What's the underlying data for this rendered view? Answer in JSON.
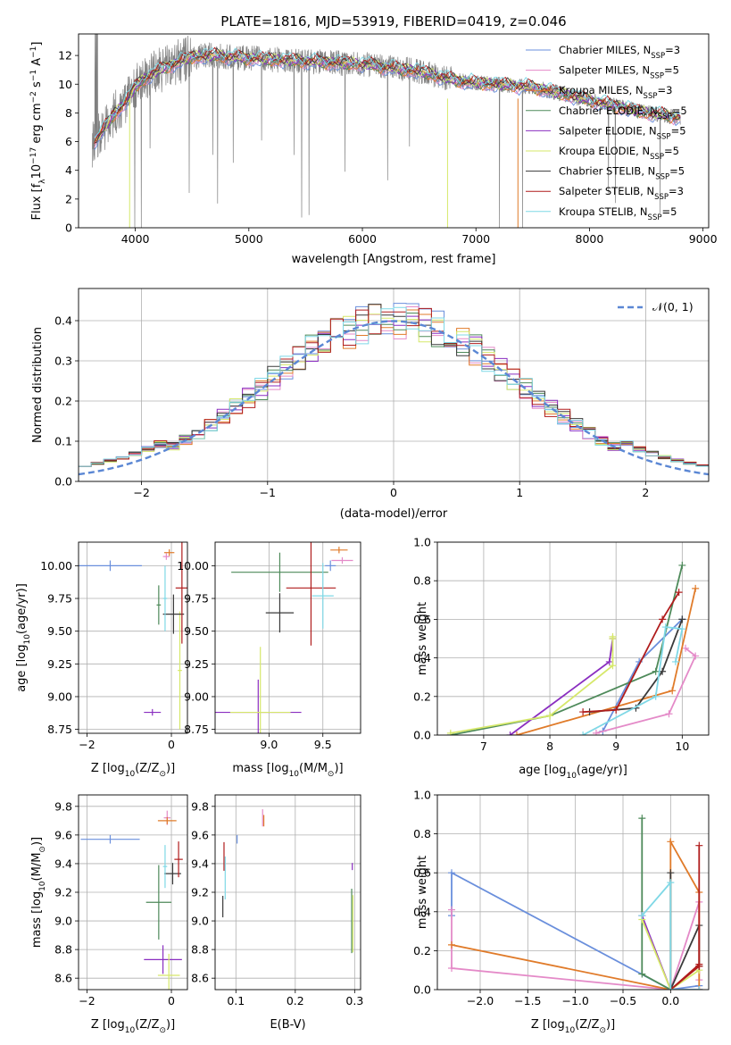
{
  "figure": {
    "title": "PLATE=1816, MJD=53919, FIBERID=0419, z=0.046"
  },
  "chart_data": [
    {
      "id": "spectrum",
      "type": "line",
      "title": "PLATE=1816, MJD=53919, FIBERID=0419, z=0.046",
      "xlabel": "wavelength [Angstrom, rest frame]",
      "ylabel": "Flux [f$_\\lambda$10$^{-17}$ erg cm$^{-2}$ s$^{-1}$ A$^{-1}$]",
      "ylabel_parts": [
        "Flux [f",
        "λ",
        "10",
        "−17",
        " erg cm",
        "−2",
        " s",
        "−1",
        " A",
        "−1",
        "]"
      ],
      "xlim": [
        3500,
        9050
      ],
      "ylim": [
        0,
        13.5
      ],
      "xticks": [
        4000,
        5000,
        6000,
        7000,
        8000,
        9000
      ],
      "yticks": [
        0,
        2,
        4,
        6,
        8,
        10,
        12
      ],
      "grid": false,
      "legend_position": "top-right",
      "data_wavelength": [
        3620,
        3700,
        3800,
        3900,
        4000,
        4100,
        4200,
        4300,
        4400,
        4500,
        4700,
        5000,
        5500,
        6000,
        6500,
        6800,
        7000,
        7500,
        8000,
        8500,
        8800
      ],
      "data_flux": [
        5.8,
        6.6,
        7.8,
        8.6,
        9.8,
        10.5,
        10.9,
        11.3,
        11.6,
        11.9,
        12.0,
        11.8,
        11.6,
        11.4,
        10.9,
        10.3,
        10.1,
        9.8,
        8.9,
        8.0,
        7.7
      ],
      "series": [
        {
          "name": "Chabrier MILES, N$_{SSP}$=3",
          "label": "Chabrier MILES, N",
          "sub": "SSP",
          "suffix": "=3",
          "color": "#6a8fdc"
        },
        {
          "name": "Salpeter MILES, N$_{SSP}$=5",
          "label": "Salpeter MILES, N",
          "sub": "SSP",
          "suffix": "=5",
          "color": "#e48ac8"
        },
        {
          "name": "Kroupa MILES, N$_{SSP}$=3",
          "label": "Kroupa MILES, N",
          "sub": "SSP",
          "suffix": "=3",
          "color": "#e07b2a"
        },
        {
          "name": "Chabrier ELODIE, N$_{SSP}$=5",
          "label": "Chabrier ELODIE, N",
          "sub": "SSP",
          "suffix": "=5",
          "color": "#4e8a5a"
        },
        {
          "name": "Salpeter ELODIE, N$_{SSP}$=5",
          "label": "Salpeter ELODIE, N",
          "sub": "SSP",
          "suffix": "=5",
          "color": "#8a2ec0"
        },
        {
          "name": "Kroupa ELODIE, N$_{SSP}$=5",
          "label": "Kroupa ELODIE, N",
          "sub": "SSP",
          "suffix": "=5",
          "color": "#d6e86a"
        },
        {
          "name": "Chabrier STELIB, N$_{SSP}$=5",
          "label": "Chabrier STELIB, N",
          "sub": "SSP",
          "suffix": "=5",
          "color": "#3a3a3a"
        },
        {
          "name": "Salpeter STELIB, N$_{SSP}$=3",
          "label": "Salpeter STELIB, N",
          "sub": "SSP",
          "suffix": "=3",
          "color": "#b01c1c"
        },
        {
          "name": "Kroupa STELIB, N$_{SSP}$=5",
          "label": "Kroupa STELIB, N",
          "sub": "SSP",
          "suffix": "=5",
          "color": "#7fd8e6"
        }
      ],
      "data_color": "#808080"
    },
    {
      "id": "residuals",
      "type": "histogram",
      "xlabel": "(data-model)/error",
      "ylabel": "Normed distribution",
      "xlim": [
        -2.5,
        2.5
      ],
      "ylim": [
        0,
        0.48
      ],
      "xticks": [
        -2,
        -1,
        0,
        1,
        2
      ],
      "yticks": [
        0.0,
        0.1,
        0.2,
        0.3,
        0.4
      ],
      "grid": true,
      "legend_position": "top-right",
      "legend": [
        "$\\mathcal{N}(0, 1)$"
      ],
      "legend_text": "𝒩(0, 1)",
      "normal_color": "#5b87d4"
    },
    {
      "id": "age-vs-Z",
      "type": "scatter",
      "xlabel": "Z [log$_{10}$(Z/Z$_\\odot$)]",
      "ylabel": "age  [log$_{10}$(age/yr)]",
      "xlim": [
        -2.2,
        0.38
      ],
      "ylim": [
        8.72,
        10.18
      ],
      "xticks": [
        -2,
        0
      ],
      "yticks": [
        8.75,
        9.0,
        9.25,
        9.5,
        9.75,
        10.0
      ],
      "grid": true,
      "points": [
        {
          "x": -1.45,
          "y": 10.0,
          "xerr": 0.75,
          "yerr": 0.08,
          "c": 0
        },
        {
          "x": -0.12,
          "y": 10.07,
          "xerr": 0.08,
          "yerr": 0.05,
          "c": 1
        },
        {
          "x": -0.05,
          "y": 10.1,
          "xerr": 0.12,
          "yerr": 0.05,
          "c": 2
        },
        {
          "x": -0.3,
          "y": 9.7,
          "xerr": 0.05,
          "yerr": 0.3,
          "c": 3
        },
        {
          "x": -0.45,
          "y": 8.88,
          "xerr": 0.2,
          "yerr": 0.05,
          "c": 4
        },
        {
          "x": 0.2,
          "y": 9.2,
          "xerr": 0.05,
          "yerr": 0.9,
          "c": 5
        },
        {
          "x": 0.05,
          "y": 9.63,
          "xerr": 0.25,
          "yerr": 0.3,
          "c": 6
        },
        {
          "x": 0.25,
          "y": 9.83,
          "xerr": 0.15,
          "yerr": 0.85,
          "c": 7
        },
        {
          "x": -0.15,
          "y": 9.75,
          "xerr": 0.05,
          "yerr": 0.5,
          "c": 8
        }
      ]
    },
    {
      "id": "age-vs-mass",
      "type": "scatter",
      "xlabel": "mass [log$_{10}$(M/M$_\\odot$)]",
      "ylabel": "",
      "xlim": [
        8.5,
        9.85
      ],
      "ylim": [
        8.72,
        10.18
      ],
      "xticks": [
        9.0,
        9.5
      ],
      "yticks": [
        8.75,
        9.0,
        9.25,
        9.5,
        9.75,
        10.0
      ],
      "grid": true,
      "points": [
        {
          "x": 9.57,
          "y": 10.0,
          "xerr": 0.05,
          "yerr": 0.08,
          "c": 0
        },
        {
          "x": 9.68,
          "y": 10.04,
          "xerr": 0.1,
          "yerr": 0.05,
          "c": 1
        },
        {
          "x": 9.65,
          "y": 10.12,
          "xerr": 0.08,
          "yerr": 0.05,
          "c": 2
        },
        {
          "x": 9.1,
          "y": 9.95,
          "xerr": 0.45,
          "yerr": 0.3,
          "c": 3
        },
        {
          "x": 8.9,
          "y": 8.88,
          "xerr": 0.4,
          "yerr": 0.5,
          "c": 4
        },
        {
          "x": 8.92,
          "y": 8.88,
          "xerr": 0.28,
          "yerr": 1.0,
          "c": 5
        },
        {
          "x": 9.1,
          "y": 9.64,
          "xerr": 0.13,
          "yerr": 0.3,
          "c": 6
        },
        {
          "x": 9.39,
          "y": 9.83,
          "xerr": 0.23,
          "yerr": 0.88,
          "c": 7
        },
        {
          "x": 9.5,
          "y": 9.77,
          "xerr": 0.1,
          "yerr": 0.5,
          "c": 8
        }
      ]
    },
    {
      "id": "weight-vs-age",
      "type": "line",
      "xlabel": "age  [log$_{10}$(age/yr)]",
      "ylabel": "mass weight",
      "xlim": [
        6.3,
        10.4
      ],
      "ylim": [
        0,
        1.0
      ],
      "xticks": [
        7,
        8,
        9,
        10
      ],
      "yticks": [
        0.0,
        0.2,
        0.4,
        0.6,
        0.8,
        1.0
      ],
      "grid": true,
      "series": [
        {
          "c": 0,
          "x": [
            8.8,
            9.35,
            10.0
          ],
          "y": [
            0.02,
            0.38,
            0.6
          ]
        },
        {
          "c": 1,
          "x": [
            8.7,
            9.8,
            10.2,
            10.05
          ],
          "y": [
            0.01,
            0.11,
            0.41,
            0.45
          ]
        },
        {
          "c": 2,
          "x": [
            7.5,
            9.85,
            10.2
          ],
          "y": [
            0.0,
            0.23,
            0.76
          ]
        },
        {
          "c": 3,
          "x": [
            6.5,
            8.0,
            9.6,
            10.0
          ],
          "y": [
            0.0,
            0.1,
            0.33,
            0.88
          ]
        },
        {
          "c": 4,
          "x": [
            7.4,
            8.9,
            8.95
          ],
          "y": [
            0.0,
            0.38,
            0.5
          ]
        },
        {
          "c": 5,
          "x": [
            6.5,
            8.0,
            8.95,
            8.95,
            8.95
          ],
          "y": [
            0.01,
            0.1,
            0.36,
            0.51,
            0.5
          ]
        },
        {
          "c": 6,
          "x": [
            8.6,
            9.3,
            9.7,
            10.0
          ],
          "y": [
            0.12,
            0.14,
            0.33,
            0.6
          ]
        },
        {
          "c": 7,
          "x": [
            8.5,
            9.0,
            9.7,
            9.95
          ],
          "y": [
            0.12,
            0.13,
            0.6,
            0.74
          ]
        },
        {
          "c": 8,
          "x": [
            8.5,
            9.6,
            9.75,
            10.0,
            9.9
          ],
          "y": [
            0.0,
            0.2,
            0.56,
            0.55,
            0.38
          ]
        }
      ]
    },
    {
      "id": "mass-vs-Z",
      "type": "scatter",
      "xlabel": "Z [log$_{10}$(Z/Z$_\\odot$)]",
      "ylabel": "mass [log$_{10}$(M/M$_\\odot$)]",
      "xlim": [
        -2.2,
        0.38
      ],
      "ylim": [
        8.52,
        9.88
      ],
      "xticks": [
        -2,
        0
      ],
      "yticks": [
        8.6,
        8.8,
        9.0,
        9.2,
        9.4,
        9.6,
        9.8
      ],
      "grid": true,
      "points": [
        {
          "x": -1.45,
          "y": 9.57,
          "xerr": 0.7,
          "yerr": 0.06,
          "c": 0
        },
        {
          "x": -0.1,
          "y": 9.72,
          "xerr": 0.08,
          "yerr": 0.1,
          "c": 1
        },
        {
          "x": -0.1,
          "y": 9.7,
          "xerr": 0.22,
          "yerr": 0.05,
          "c": 2
        },
        {
          "x": -0.3,
          "y": 9.13,
          "xerr": 0.3,
          "yerr": 0.52,
          "c": 3
        },
        {
          "x": -0.2,
          "y": 8.73,
          "xerr": 0.45,
          "yerr": 0.2,
          "c": 4
        },
        {
          "x": -0.06,
          "y": 8.62,
          "xerr": 0.26,
          "yerr": 0.3,
          "c": 5
        },
        {
          "x": 0.03,
          "y": 9.33,
          "xerr": 0.2,
          "yerr": 0.15,
          "c": 6
        },
        {
          "x": 0.17,
          "y": 9.43,
          "xerr": 0.1,
          "yerr": 0.25,
          "c": 7
        },
        {
          "x": -0.15,
          "y": 9.38,
          "xerr": 0.05,
          "yerr": 0.3,
          "c": 8
        }
      ]
    },
    {
      "id": "mass-vs-EBV",
      "type": "scatter",
      "xlabel": "E(B-V)",
      "ylabel": "",
      "xlim": [
        0.065,
        0.31
      ],
      "ylim": [
        8.52,
        9.88
      ],
      "xticks": [
        0.1,
        0.2,
        0.3
      ],
      "yticks": [
        8.6,
        8.8,
        9.0,
        9.2,
        9.4,
        9.6,
        9.8
      ],
      "grid": true,
      "points": [
        {
          "x": 0.102,
          "y": 9.57,
          "xerr": 0.0,
          "yerr": 0.06,
          "c": 0
        },
        {
          "x": 0.145,
          "y": 9.72,
          "xerr": 0.0,
          "yerr": 0.12,
          "c": 1
        },
        {
          "x": 0.147,
          "y": 9.7,
          "xerr": 0.0,
          "yerr": 0.08,
          "c": 2
        },
        {
          "x": 0.295,
          "y": 9.0,
          "xerr": 0.0,
          "yerr": 0.45,
          "c": 3
        },
        {
          "x": 0.296,
          "y": 9.38,
          "xerr": 0.0,
          "yerr": 0.05,
          "c": 4
        },
        {
          "x": 0.297,
          "y": 8.98,
          "xerr": 0.0,
          "yerr": 0.4,
          "c": 5
        },
        {
          "x": 0.078,
          "y": 9.1,
          "xerr": 0.0,
          "yerr": 0.15,
          "c": 6
        },
        {
          "x": 0.08,
          "y": 9.45,
          "xerr": 0.0,
          "yerr": 0.2,
          "c": 7
        },
        {
          "x": 0.082,
          "y": 9.3,
          "xerr": 0.0,
          "yerr": 0.3,
          "c": 8
        }
      ]
    },
    {
      "id": "weight-vs-Z",
      "type": "line",
      "xlabel": "Z [log$_{10}$(Z/Z$_\\odot$)]",
      "ylabel": "mass weight",
      "xlim": [
        -2.45,
        0.4
      ],
      "ylim": [
        0,
        1.0
      ],
      "xticks": [
        -2.0,
        -1.5,
        -1.0,
        -0.5,
        0.0
      ],
      "yticks": [
        0.0,
        0.2,
        0.4,
        0.6,
        0.8,
        1.0
      ],
      "grid": true,
      "series": [
        {
          "c": 0,
          "x": [
            -2.3,
            -2.3,
            0.0,
            0.3
          ],
          "y": [
            0.38,
            0.6,
            0.0,
            0.02
          ]
        },
        {
          "c": 1,
          "x": [
            -2.3,
            -2.3,
            0.0,
            0.3,
            0.3
          ],
          "y": [
            0.41,
            0.11,
            0.0,
            0.45,
            0.05
          ]
        },
        {
          "c": 2,
          "x": [
            -2.3,
            0.0,
            0.0,
            0.3,
            0.3
          ],
          "y": [
            0.23,
            0.0,
            0.76,
            0.5,
            0.0
          ]
        },
        {
          "c": 3,
          "x": [
            -0.3,
            -0.3,
            0.0,
            0.3
          ],
          "y": [
            0.88,
            0.08,
            0.0,
            0.0
          ]
        },
        {
          "c": 4,
          "x": [
            -0.3,
            0.0,
            0.3
          ],
          "y": [
            0.38,
            0.0,
            0.0
          ]
        },
        {
          "c": 5,
          "x": [
            -0.3,
            0.0,
            0.3
          ],
          "y": [
            0.36,
            0.0,
            0.1
          ]
        },
        {
          "c": 6,
          "x": [
            0.0,
            0.0,
            0.3,
            0.3
          ],
          "y": [
            0.6,
            0.0,
            0.33,
            0.12
          ]
        },
        {
          "c": 7,
          "x": [
            0.3,
            0.3,
            0.0,
            0.3
          ],
          "y": [
            0.74,
            0.13,
            0.0,
            0.12
          ]
        },
        {
          "c": 8,
          "x": [
            -0.3,
            0.0,
            0.0,
            0.3
          ],
          "y": [
            0.38,
            0.55,
            0.0,
            0.0
          ]
        }
      ]
    }
  ]
}
